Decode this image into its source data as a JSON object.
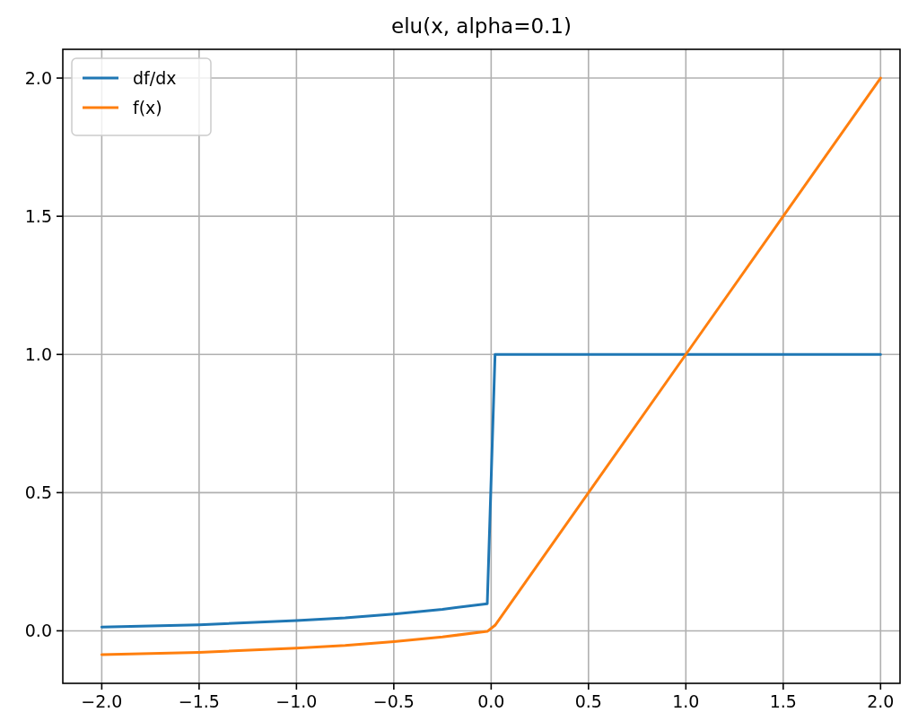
{
  "chart_data": {
    "type": "line",
    "title": "elu(x, alpha=0.1)",
    "x": [
      -2,
      -1.5,
      -1,
      -0.75,
      -0.5,
      -0.25,
      -0.02,
      0.02,
      1,
      2
    ],
    "series": [
      {
        "name": "df/dx",
        "color": "#1f77b4",
        "values": [
          0.014,
          0.022,
          0.037,
          0.047,
          0.061,
          0.078,
          0.098,
          1,
          1,
          1
        ]
      },
      {
        "name": "f(x)",
        "color": "#ff7f0e",
        "values": [
          -0.086,
          -0.078,
          -0.063,
          -0.053,
          -0.039,
          -0.022,
          -0.002,
          0.02,
          1,
          2
        ]
      }
    ],
    "xlim": [
      -2.2,
      2.1
    ],
    "ylim": [
      -0.19,
      2.104
    ],
    "xticks": [
      {
        "value": -2,
        "label": "−2.0"
      },
      {
        "value": -1.5,
        "label": "−1.5"
      },
      {
        "value": -1,
        "label": "−1.0"
      },
      {
        "value": -0.5,
        "label": "−0.5"
      },
      {
        "value": 0,
        "label": "0.0"
      },
      {
        "value": 0.5,
        "label": "0.5"
      },
      {
        "value": 1,
        "label": "1.0"
      },
      {
        "value": 1.5,
        "label": "1.5"
      },
      {
        "value": 2,
        "label": "2.0"
      }
    ],
    "yticks": [
      {
        "value": 0,
        "label": "0.0"
      },
      {
        "value": 0.5,
        "label": "0.5"
      },
      {
        "value": 1,
        "label": "1.0"
      },
      {
        "value": 1.5,
        "label": "1.5"
      },
      {
        "value": 2,
        "label": "2.0"
      }
    ],
    "grid": true,
    "legend": "top left",
    "line_style": "solid",
    "marker": "none"
  }
}
